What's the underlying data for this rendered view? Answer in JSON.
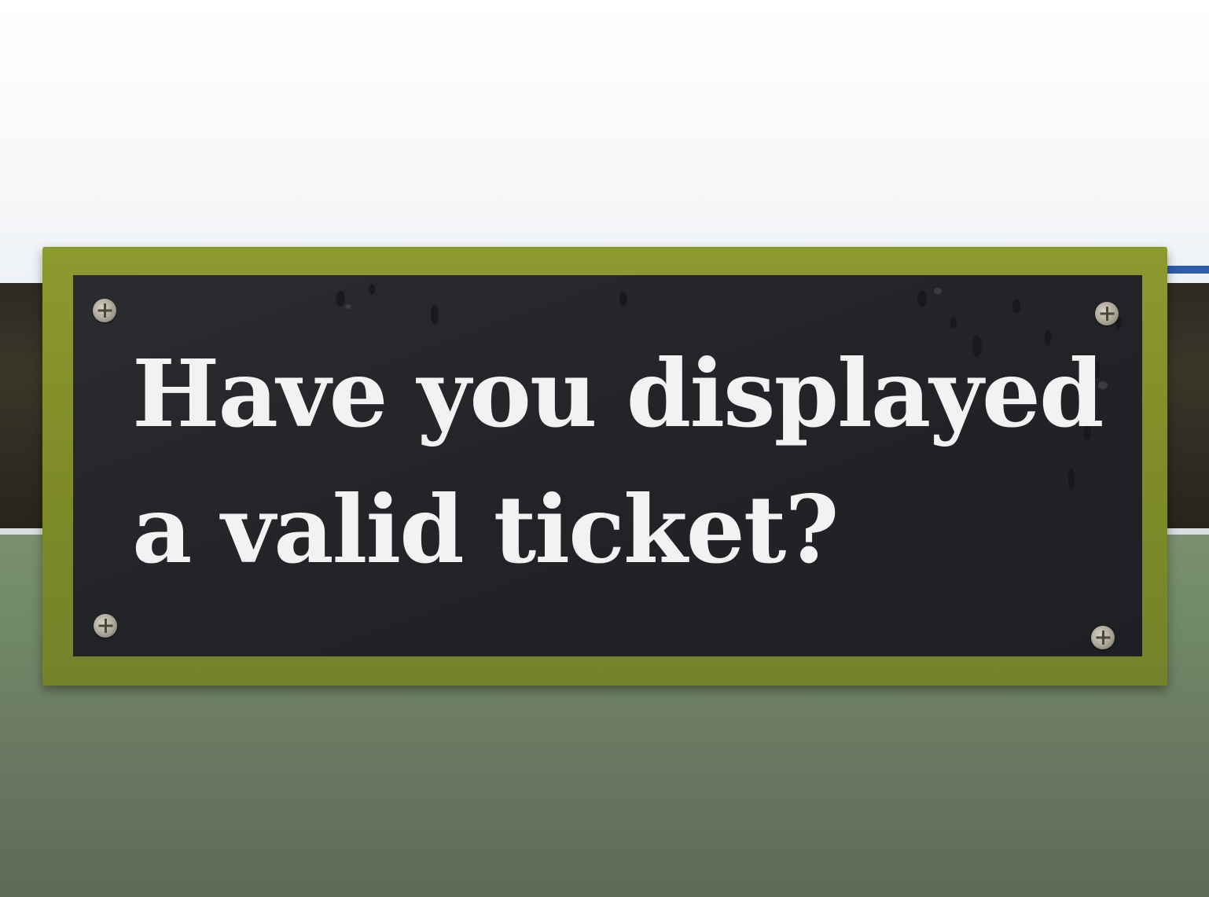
{
  "sign": {
    "line1": "Have you displayed",
    "line2": "a valid ticket?"
  },
  "colors": {
    "sign_border": "#829026",
    "sign_panel": "#232428",
    "sign_text": "#f2f2f2"
  }
}
